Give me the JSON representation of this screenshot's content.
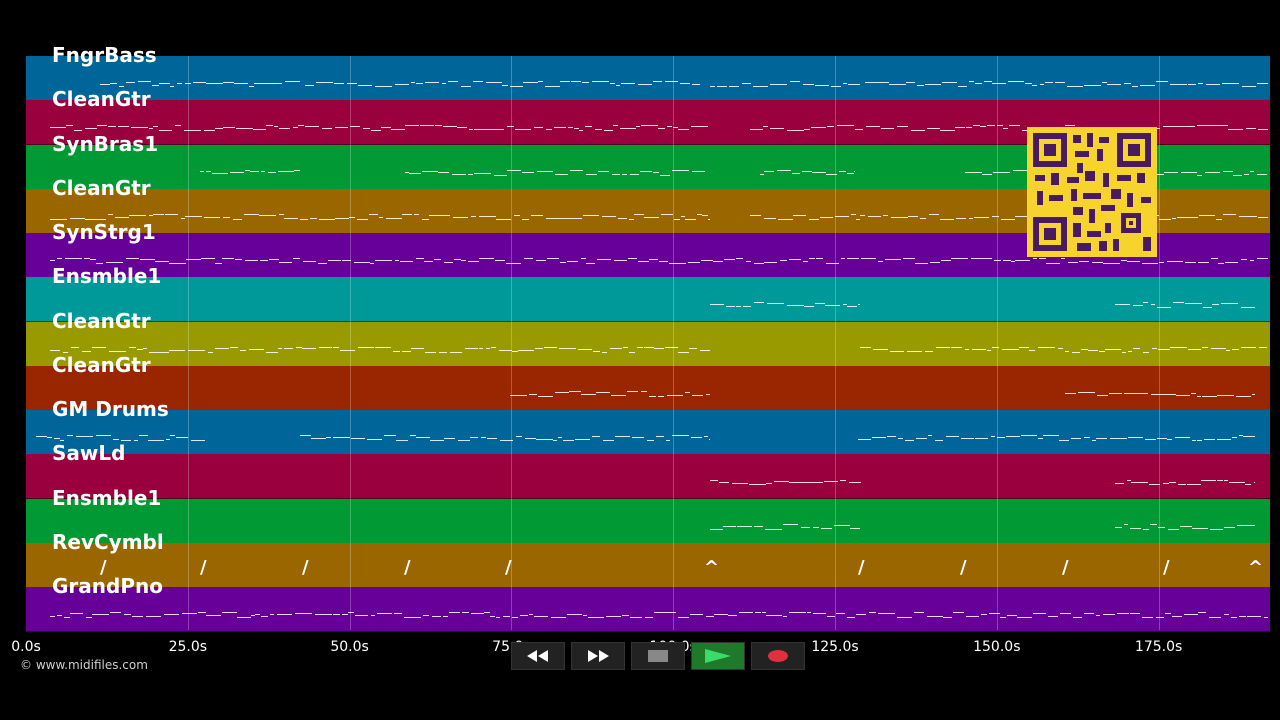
{
  "tracks": [
    {
      "name": "FngrBass",
      "color": "#006699"
    },
    {
      "name": "CleanGtr",
      "color": "#99003d"
    },
    {
      "name": "SynBras1",
      "color": "#009933"
    },
    {
      "name": "CleanGtr",
      "color": "#996600"
    },
    {
      "name": "SynStrg1",
      "color": "#660099"
    },
    {
      "name": "Ensmble1",
      "color": "#009999"
    },
    {
      "name": "CleanGtr",
      "color": "#999900"
    },
    {
      "name": "CleanGtr",
      "color": "#992600"
    },
    {
      "name": "GM Drums",
      "color": "#006699"
    },
    {
      "name": "SawLd",
      "color": "#99003d"
    },
    {
      "name": "Ensmble1",
      "color": "#009933"
    },
    {
      "name": "RevCymbl",
      "color": "#996600"
    },
    {
      "name": "GrandPno",
      "color": "#660099"
    }
  ],
  "timeline": {
    "ticks": [
      "0.0s",
      "25.0s",
      "50.0s",
      "75.0s",
      "100.0s",
      "125.0s",
      "150.0s",
      "175.0s"
    ]
  },
  "copyright": "© www.midifiles.com",
  "transport": {
    "rewind_icon": "rewind-icon",
    "fastforward_icon": "fast-forward-icon",
    "stop_icon": "stop-icon",
    "play_icon": "play-icon",
    "record_icon": "record-icon",
    "record_color": "#e03040",
    "play_color": "#3ddc6a"
  },
  "qr_color": "#f6d32d"
}
